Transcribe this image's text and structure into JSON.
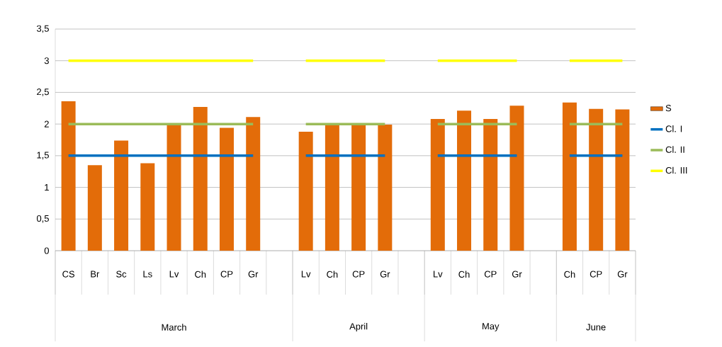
{
  "chart_data": {
    "type": "bar",
    "categories": [
      "CS",
      "Br",
      "Sc",
      "Ls",
      "Lv",
      "Ch",
      "CP",
      "Gr",
      null,
      "Lv",
      "Ch",
      "CP",
      "Gr",
      null,
      "Lv",
      "Ch",
      "CP",
      "Gr",
      null,
      "Ch",
      "CP",
      "Gr"
    ],
    "series": [
      {
        "name": "S",
        "color": "#e36c09",
        "values": [
          2.36,
          1.35,
          1.74,
          1.38,
          1.99,
          2.27,
          1.94,
          2.11,
          null,
          1.88,
          1.99,
          1.99,
          1.99,
          null,
          2.08,
          2.21,
          2.08,
          2.29,
          null,
          2.34,
          2.24,
          2.23
        ]
      },
      {
        "name": "Cl. I",
        "type": "line",
        "color": "#0070c0",
        "values": [
          1.5,
          1.5,
          1.5,
          1.5,
          1.5,
          1.5,
          1.5,
          1.5,
          null,
          1.5,
          1.5,
          1.5,
          1.5,
          null,
          1.5,
          1.5,
          1.5,
          1.5,
          null,
          1.5,
          1.5,
          1.5
        ]
      },
      {
        "name": "Cl. II",
        "type": "line",
        "color": "#9bbb59",
        "values": [
          2,
          2,
          2,
          2,
          2,
          2,
          2,
          2,
          null,
          2,
          2,
          2,
          2,
          null,
          2,
          2,
          2,
          2,
          null,
          2,
          2,
          2
        ]
      },
      {
        "name": "Cl. III",
        "type": "line",
        "color": "#ffff00",
        "values": [
          3,
          3,
          3,
          3,
          3,
          3,
          3,
          3,
          null,
          3,
          3,
          3,
          3,
          null,
          3,
          3,
          3,
          3,
          null,
          3,
          3,
          3
        ]
      }
    ],
    "annotations": [
      "March",
      "April",
      "May",
      "June"
    ],
    "ylim": [
      0,
      3.5
    ],
    "yticks": [
      0,
      {
        "value": 0.5,
        "label": "0,5"
      },
      1,
      {
        "value": 1.5,
        "label": "1,5"
      },
      2,
      {
        "value": 2.5,
        "label": "2,5"
      },
      3,
      {
        "value": 3.5,
        "label": "3,5"
      }
    ],
    "grid": "y",
    "legend": "right",
    "marker": "none",
    "line_style": "solid"
  }
}
